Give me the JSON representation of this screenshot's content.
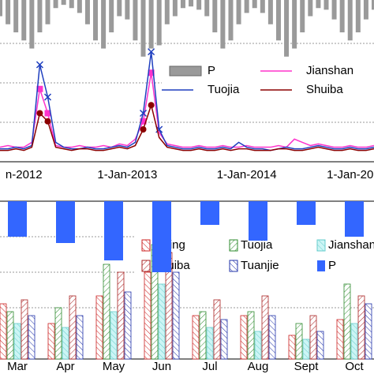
{
  "chart_data": [
    {
      "type": "line",
      "categories": [
        null,
        null,
        null,
        "n-2012",
        null,
        null,
        null,
        null,
        null,
        null,
        null,
        null,
        null,
        null,
        null,
        null,
        "1-Jan-2013",
        null,
        null,
        null,
        null,
        null,
        null,
        null,
        null,
        null,
        null,
        null,
        null,
        null,
        null,
        "1-Jan-2014",
        null,
        null,
        null,
        null,
        null,
        null,
        null,
        null,
        null,
        null,
        null,
        null,
        "1-Jan-20",
        null,
        null,
        null
      ],
      "ylim": [
        0,
        100
      ],
      "y2lim": [
        0,
        100
      ],
      "y2_inverted": true,
      "series": [
        {
          "name": "P",
          "color": "#9a9a9a",
          "axis": "y2",
          "values": [
            10,
            15,
            20,
            25,
            30,
            20,
            15,
            5,
            3,
            5,
            8,
            15,
            25,
            30,
            20,
            10,
            12,
            25,
            35,
            30,
            28,
            15,
            10,
            5,
            4,
            6,
            10,
            20,
            30,
            25,
            15,
            8,
            5,
            8,
            15,
            25,
            35,
            30,
            20,
            10,
            5,
            6,
            12,
            20,
            25,
            20,
            12,
            6
          ]
        },
        {
          "name": "Jianshan",
          "color": "#ff33cc",
          "values": [
            9,
            10,
            9,
            9,
            12,
            45,
            30,
            10,
            9,
            9,
            10,
            9,
            9,
            10,
            9,
            11,
            10,
            14,
            25,
            55,
            18,
            11,
            10,
            9,
            9,
            10,
            9,
            9,
            10,
            9,
            9,
            10,
            9,
            9,
            9,
            10,
            9,
            14,
            12,
            10,
            11,
            10,
            9,
            9,
            10,
            9,
            9,
            10
          ]
        },
        {
          "name": "Tuojia",
          "color": "#1f3fbf",
          "values": [
            8,
            8,
            9,
            8,
            10,
            60,
            40,
            12,
            9,
            8,
            8,
            9,
            8,
            8,
            9,
            10,
            9,
            12,
            30,
            68,
            20,
            10,
            9,
            8,
            8,
            9,
            8,
            8,
            9,
            8,
            12,
            9,
            8,
            8,
            7,
            8,
            9,
            8,
            8,
            9,
            10,
            9,
            8,
            8,
            9,
            8,
            8,
            9
          ]
        },
        {
          "name": "Shuiba",
          "color": "#8b0000",
          "values": [
            7,
            7,
            8,
            7,
            9,
            30,
            25,
            9,
            8,
            7,
            8,
            8,
            7,
            7,
            8,
            9,
            8,
            10,
            20,
            35,
            15,
            9,
            8,
            7,
            7,
            8,
            7,
            7,
            8,
            7,
            8,
            8,
            7,
            7,
            7,
            8,
            8,
            7,
            7,
            8,
            9,
            8,
            7,
            7,
            8,
            7,
            7,
            8
          ]
        }
      ]
    },
    {
      "type": "bar",
      "categories": [
        "Mar",
        "Apr",
        "May",
        "Jun",
        "Jul",
        "Aug",
        "Sept",
        "Oct"
      ],
      "ylim": [
        0,
        200
      ],
      "y2lim": [
        0,
        200
      ],
      "y2_inverted": true,
      "series": [
        {
          "name": "Fuling",
          "color": "#cc2222",
          "values": [
            70,
            45,
            80,
            110,
            55,
            55,
            30,
            50
          ]
        },
        {
          "name": "Tuojia",
          "color": "#2e8b2e",
          "values": [
            60,
            65,
            120,
            145,
            60,
            60,
            45,
            95
          ]
        },
        {
          "name": "Jianshan",
          "color": "#66cccc",
          "values": [
            45,
            40,
            60,
            95,
            40,
            35,
            25,
            45
          ]
        },
        {
          "name": "Shuiba",
          "color": "#aa2222",
          "values": [
            75,
            80,
            110,
            135,
            75,
            80,
            55,
            80
          ]
        },
        {
          "name": "Tuanjie",
          "color": "#2233aa",
          "values": [
            55,
            55,
            85,
            110,
            50,
            55,
            35,
            70
          ]
        },
        {
          "name": "P",
          "color": "#3366ff",
          "axis": "y2",
          "values": [
            45,
            53,
            75,
            90,
            30,
            50,
            30,
            45
          ]
        }
      ]
    }
  ]
}
